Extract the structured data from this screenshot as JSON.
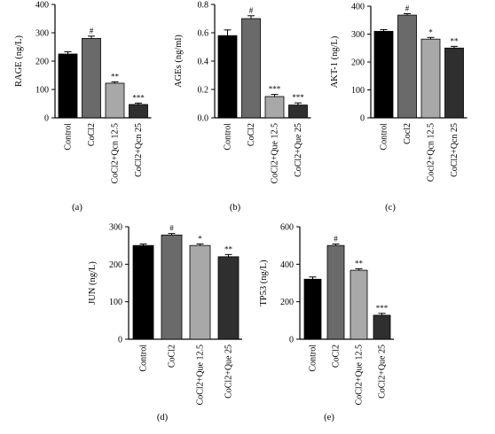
{
  "chart_data": [
    {
      "type": "bar",
      "panel_label": "(a)",
      "ylabel": "RAGE (ng/L)",
      "ylim": [
        0,
        400
      ],
      "yticks": [
        "0",
        "100",
        "200",
        "300",
        "400"
      ],
      "categories": [
        "Control",
        "CoCl2",
        "CoCl2+Qcn 12.5",
        "CoCl2+Qcn 25"
      ],
      "values": [
        225,
        280,
        122,
        47
      ],
      "errors": [
        8,
        8,
        5,
        5
      ],
      "annotations": [
        "",
        "#",
        "**",
        "***"
      ],
      "colors": [
        "#000000",
        "#6a6a6a",
        "#a8a8a8",
        "#2f2f2f"
      ]
    },
    {
      "type": "bar",
      "panel_label": "(b)",
      "ylabel": "AGEs (ng/ml)",
      "ylim": [
        0,
        0.8
      ],
      "yticks": [
        "0.0",
        "0.2",
        "0.4",
        "0.6",
        "0.8"
      ],
      "categories": [
        "Control",
        "CoCl2",
        "CoCl2+Que 12.5",
        "CoCl2+Que 25"
      ],
      "values": [
        0.58,
        0.7,
        0.15,
        0.09
      ],
      "errors": [
        0.04,
        0.02,
        0.015,
        0.015
      ],
      "annotations": [
        "",
        "#",
        "***",
        "***"
      ],
      "colors": [
        "#000000",
        "#6a6a6a",
        "#a8a8a8",
        "#2f2f2f"
      ]
    },
    {
      "type": "bar",
      "panel_label": "(c)",
      "ylabel": "AKT-1 (ng/L)",
      "ylim": [
        0,
        400
      ],
      "yticks": [
        "0",
        "100",
        "200",
        "300",
        "400"
      ],
      "categories": [
        "Control",
        "Cocl2",
        "Cocl2+Qcn 12.5",
        "CoCl2+Qcn 25"
      ],
      "values": [
        310,
        368,
        282,
        250
      ],
      "errors": [
        6,
        5,
        6,
        6
      ],
      "annotations": [
        "",
        "#",
        "*",
        "**"
      ],
      "colors": [
        "#000000",
        "#6a6a6a",
        "#a8a8a8",
        "#2f2f2f"
      ]
    },
    {
      "type": "bar",
      "panel_label": "(d)",
      "ylabel": "JUN (ng/L)",
      "ylim": [
        0,
        300
      ],
      "yticks": [
        "0",
        "100",
        "200",
        "300"
      ],
      "categories": [
        "Control",
        "CoCl2",
        "CoCl2+Que 12.5",
        "CoCl2+Que 25"
      ],
      "values": [
        250,
        278,
        250,
        220
      ],
      "errors": [
        4,
        4,
        4,
        6
      ],
      "annotations": [
        "",
        "#",
        "*",
        "**"
      ],
      "colors": [
        "#000000",
        "#6a6a6a",
        "#a8a8a8",
        "#2f2f2f"
      ]
    },
    {
      "type": "bar",
      "panel_label": "(e)",
      "ylabel": "TP53 (ng/L)",
      "ylim": [
        0,
        600
      ],
      "yticks": [
        "0",
        "200",
        "400",
        "600"
      ],
      "categories": [
        "Control",
        "CoCl2",
        "CoCl2+Que 12.5",
        "CoCl2+Que 25"
      ],
      "values": [
        320,
        500,
        368,
        128
      ],
      "errors": [
        12,
        8,
        8,
        10
      ],
      "annotations": [
        "",
        "#",
        "**",
        "***"
      ],
      "colors": [
        "#000000",
        "#6a6a6a",
        "#a8a8a8",
        "#2f2f2f"
      ]
    }
  ]
}
